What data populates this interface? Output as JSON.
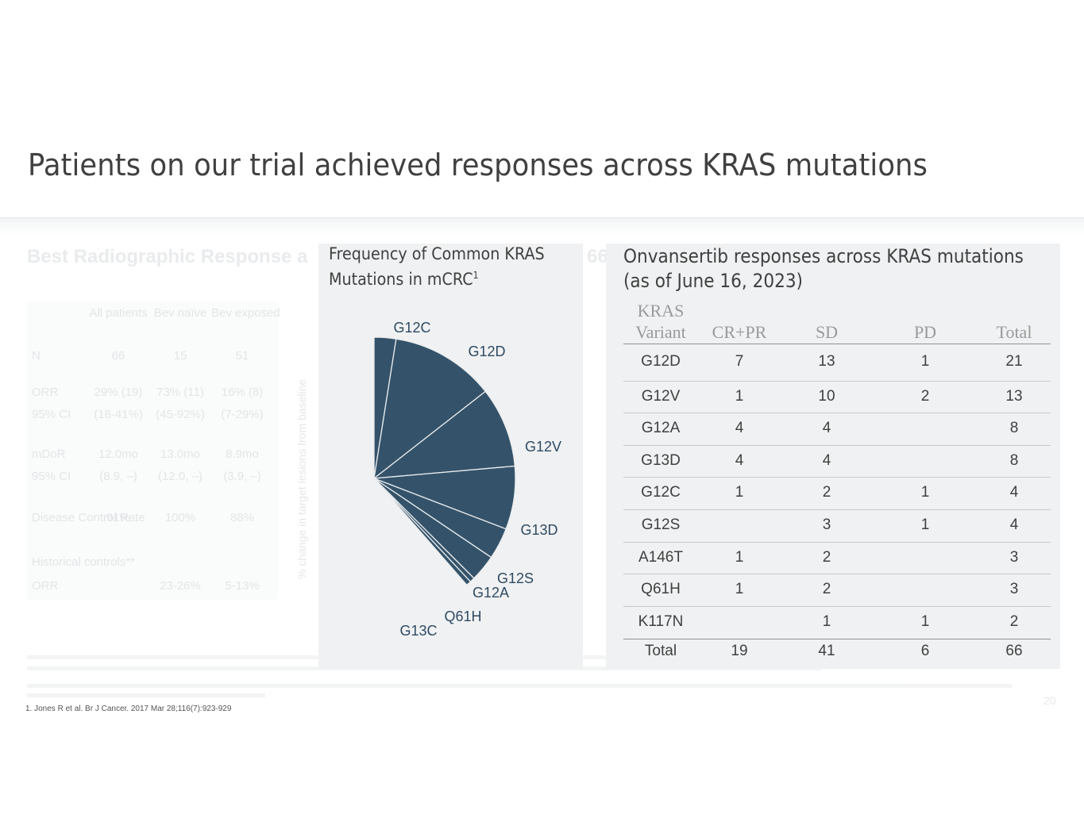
{
  "title": "Patients on our trial achieved responses across KRAS mutations",
  "background_slide": {
    "heading": "Best Radiographic Response a",
    "heading_tail": "66",
    "table_header": [
      "All patients",
      "Bev naïve",
      "Bev exposed"
    ],
    "rows": [
      {
        "label": "N",
        "values": [
          "66",
          "15",
          "51"
        ]
      },
      {
        "label": "ORR",
        "values": [
          "29% (19)",
          "73% (11)",
          "16% (8)"
        ]
      },
      {
        "label": "95% CI",
        "values": [
          "(18-41%)",
          "(45-92%)",
          "(7-29%)"
        ]
      },
      {
        "label": "mDoR",
        "values": [
          "12.0mo",
          "13.0mo",
          "8.9mo"
        ]
      },
      {
        "label": "95% CI",
        "values": [
          "(8.9, –)",
          "(12.0, –)",
          "(3.9, –)"
        ]
      },
      {
        "label": "Disease Control Rate",
        "values": [
          "91%",
          "100%",
          "88%"
        ]
      },
      {
        "label": "Historical controls**",
        "values": [
          "",
          "",
          ""
        ]
      },
      {
        "label": "ORR",
        "values": [
          "",
          "23-26%",
          "5-13%"
        ]
      }
    ],
    "axis_label": "% change in target lesions from baseline",
    "page_number": "20"
  },
  "pie_panel": {
    "title": "Frequency of Common KRAS Mutations in mCRC",
    "title_sup": "1",
    "chart_data": {
      "type": "pie",
      "categories": [
        "G12C",
        "G12D",
        "G12V",
        "G13D",
        "G12S",
        "G12A",
        "Q61H",
        "G13C"
      ],
      "values": [
        9,
        43,
        33,
        26,
        13,
        11,
        2,
        2
      ],
      "start_angle_deg": 0,
      "direction": "clockwise",
      "slice_color": "#34536a"
    }
  },
  "table_panel": {
    "title_line1": "Onvansertib responses across KRAS mutations",
    "title_line2": "(as of June 16, 2023)",
    "columns": [
      "KRAS Variant",
      "CR+PR",
      "SD",
      "PD",
      "Total"
    ],
    "rows": [
      [
        "G12D",
        "7",
        "13",
        "1",
        "21"
      ],
      [
        "G12V",
        "1",
        "10",
        "2",
        "13"
      ],
      [
        "G12A",
        "4",
        "4",
        "",
        "8"
      ],
      [
        "G13D",
        "4",
        "4",
        "",
        "8"
      ],
      [
        "G12C",
        "1",
        "2",
        "1",
        "4"
      ],
      [
        "G12S",
        "",
        "3",
        "1",
        "4"
      ],
      [
        "A146T",
        "1",
        "2",
        "",
        "3"
      ],
      [
        "Q61H",
        "1",
        "2",
        "",
        "3"
      ],
      [
        "K117N",
        "",
        "1",
        "1",
        "2"
      ]
    ],
    "total_row": [
      "Total",
      "19",
      "41",
      "6",
      "66"
    ]
  },
  "footnote": "1.    Jones R et al. Br J Cancer. 2017 Mar 28;116(7):923-929"
}
